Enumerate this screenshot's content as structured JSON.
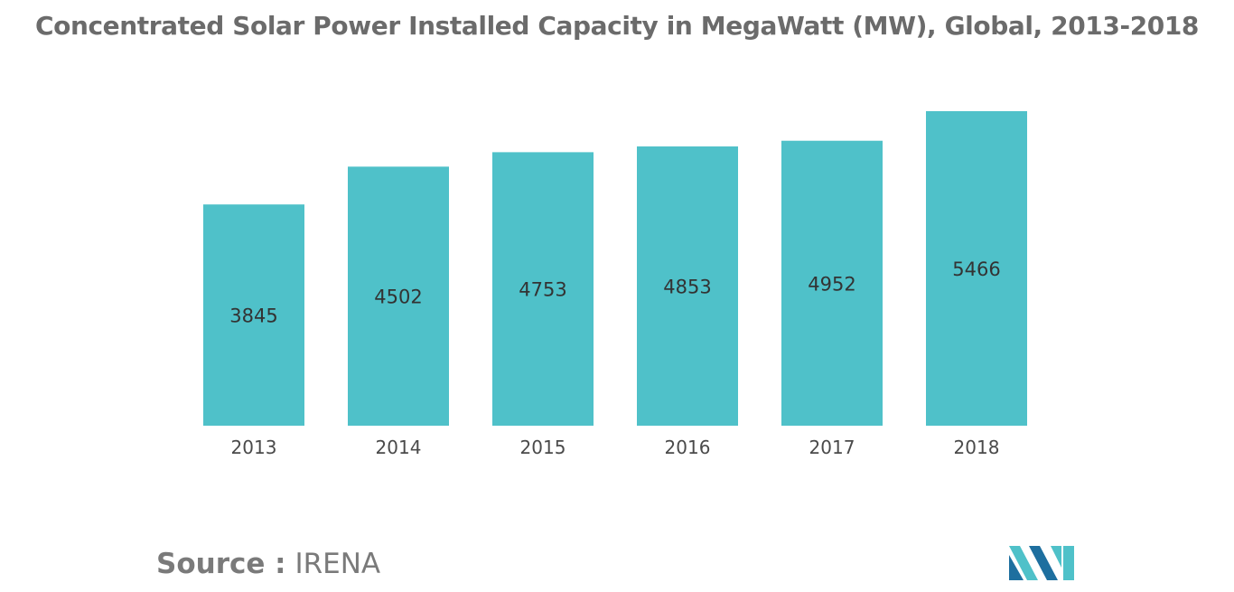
{
  "title": "Concentrated Solar Power Installed Capacity in MegaWatt (MW), Global, 2013-2018",
  "source": {
    "label": "Source :",
    "value": "IRENA"
  },
  "colors": {
    "bar": "#4fc1c9",
    "title": "#6b6b6b",
    "text": "#333333",
    "logo_dark": "#1e6f9f",
    "logo_light": "#4fc1c9"
  },
  "chart_data": {
    "type": "bar",
    "categories": [
      "2013",
      "2014",
      "2015",
      "2016",
      "2017",
      "2018"
    ],
    "values": [
      3845,
      4502,
      4753,
      4853,
      4952,
      5466
    ],
    "data_labels": [
      "3845",
      "4502",
      "4753",
      "4853",
      "4952",
      "5466"
    ],
    "title": "Concentrated Solar Power Installed Capacity in MegaWatt (MW), Global, 2013-2018",
    "xlabel": "",
    "ylabel": "",
    "ylim": [
      0,
      5466
    ],
    "grid": false,
    "legend": "none"
  }
}
